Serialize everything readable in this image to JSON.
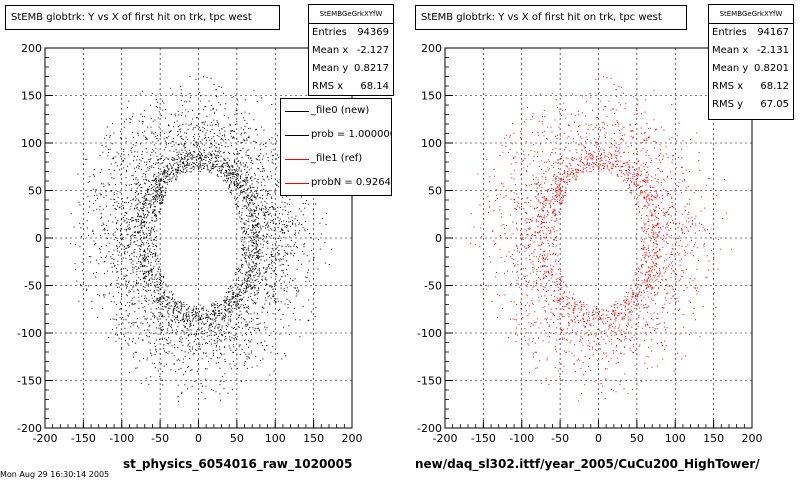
{
  "chart_data": [
    {
      "type": "scatter",
      "title": "StEMB globtrk: Y vs X of first hit on trk, tpc west",
      "xlabel": "st_physics_6054016_raw_1020005",
      "ylabel": "",
      "xlim": [
        -200,
        200
      ],
      "ylim": [
        -200,
        200
      ],
      "xticks": [
        -200,
        -150,
        -100,
        -50,
        0,
        50,
        100,
        150,
        200
      ],
      "yticks": [
        -200,
        -150,
        -100,
        -50,
        0,
        50,
        100,
        150,
        200
      ],
      "grid": true,
      "marker_color": "#000000",
      "distribution": {
        "shape": "annulus",
        "center": [
          0,
          0
        ],
        "inner_hole_x": [
          -55,
          55
        ],
        "inner_hole_y": [
          -70,
          70
        ],
        "dense_ring_radius": [
          55,
          80
        ],
        "outer_radius": 175
      },
      "stats": {
        "header": "StEMBGeGrkXYfW",
        "rows": [
          {
            "label": "Entries",
            "value": "94369"
          },
          {
            "label": "Mean x",
            "value": "-2.127"
          },
          {
            "label": "Mean y",
            "value": "0.8217"
          },
          {
            "label": "RMS x",
            "value": "68.14"
          }
        ]
      },
      "legend": {
        "entries": [
          {
            "label": "_file0 (new)",
            "color": "#000000"
          },
          {
            "label": "prob = 1.000000",
            "color": "#000000"
          },
          {
            "label": "_file1 (ref)",
            "color": "#ff0000"
          },
          {
            "label": "probN = 0.926411",
            "color": "#ff0000"
          }
        ]
      }
    },
    {
      "type": "scatter",
      "title": "StEMB globtrk: Y vs X of first hit on trk, tpc west",
      "xlabel": "new/daq_sl302.ittf/year_2005/CuCu200_HighTower/",
      "ylabel": "",
      "xlim": [
        -200,
        200
      ],
      "ylim": [
        -200,
        200
      ],
      "xticks": [
        -200,
        -150,
        -100,
        -50,
        0,
        50,
        100,
        150,
        200
      ],
      "yticks": [
        -200,
        -150,
        -100,
        -50,
        0,
        50,
        100,
        150,
        200
      ],
      "grid": true,
      "marker_color": "#ff0000",
      "distribution": {
        "shape": "annulus",
        "center": [
          0,
          0
        ],
        "inner_hole_x": [
          -55,
          55
        ],
        "inner_hole_y": [
          -70,
          70
        ],
        "dense_ring_radius": [
          55,
          80
        ],
        "outer_radius": 175
      },
      "stats": {
        "header": "StEMBGeGrkXYfW",
        "rows": [
          {
            "label": "Entries",
            "value": "94167"
          },
          {
            "label": "Mean x",
            "value": "-2.131"
          },
          {
            "label": "Mean y",
            "value": "0.8201"
          },
          {
            "label": "RMS x",
            "value": "68.12"
          },
          {
            "label": "RMS y",
            "value": "67.05"
          }
        ]
      }
    }
  ],
  "footer": {
    "date_stamp": "Mon Aug 29 16:30:14 2005"
  }
}
